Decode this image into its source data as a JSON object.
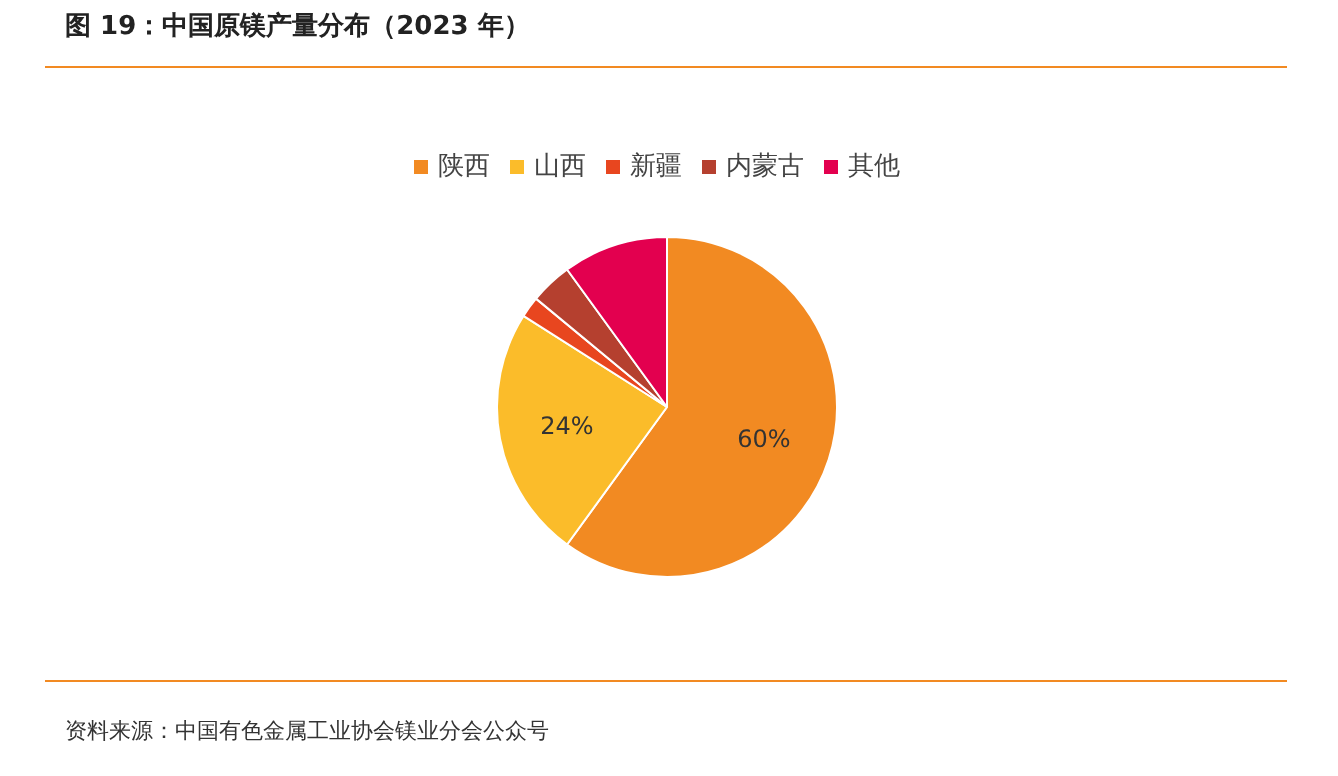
{
  "chart_data": {
    "type": "pie",
    "title": "图 19：中国原镁产量分布（2023 年）",
    "categories": [
      "陕西",
      "山西",
      "新疆",
      "内蒙古",
      "其他"
    ],
    "values": [
      60,
      24,
      2,
      4,
      10
    ],
    "colors": [
      "#f28a22",
      "#fbbc2a",
      "#e8461f",
      "#b5402f",
      "#e3004f"
    ],
    "value_labels": [
      "60%",
      "24%",
      null,
      null,
      null
    ],
    "legend": "top",
    "annotations": [
      "资料来源：中国有色金属工业协会镁业分会公众号"
    ]
  }
}
